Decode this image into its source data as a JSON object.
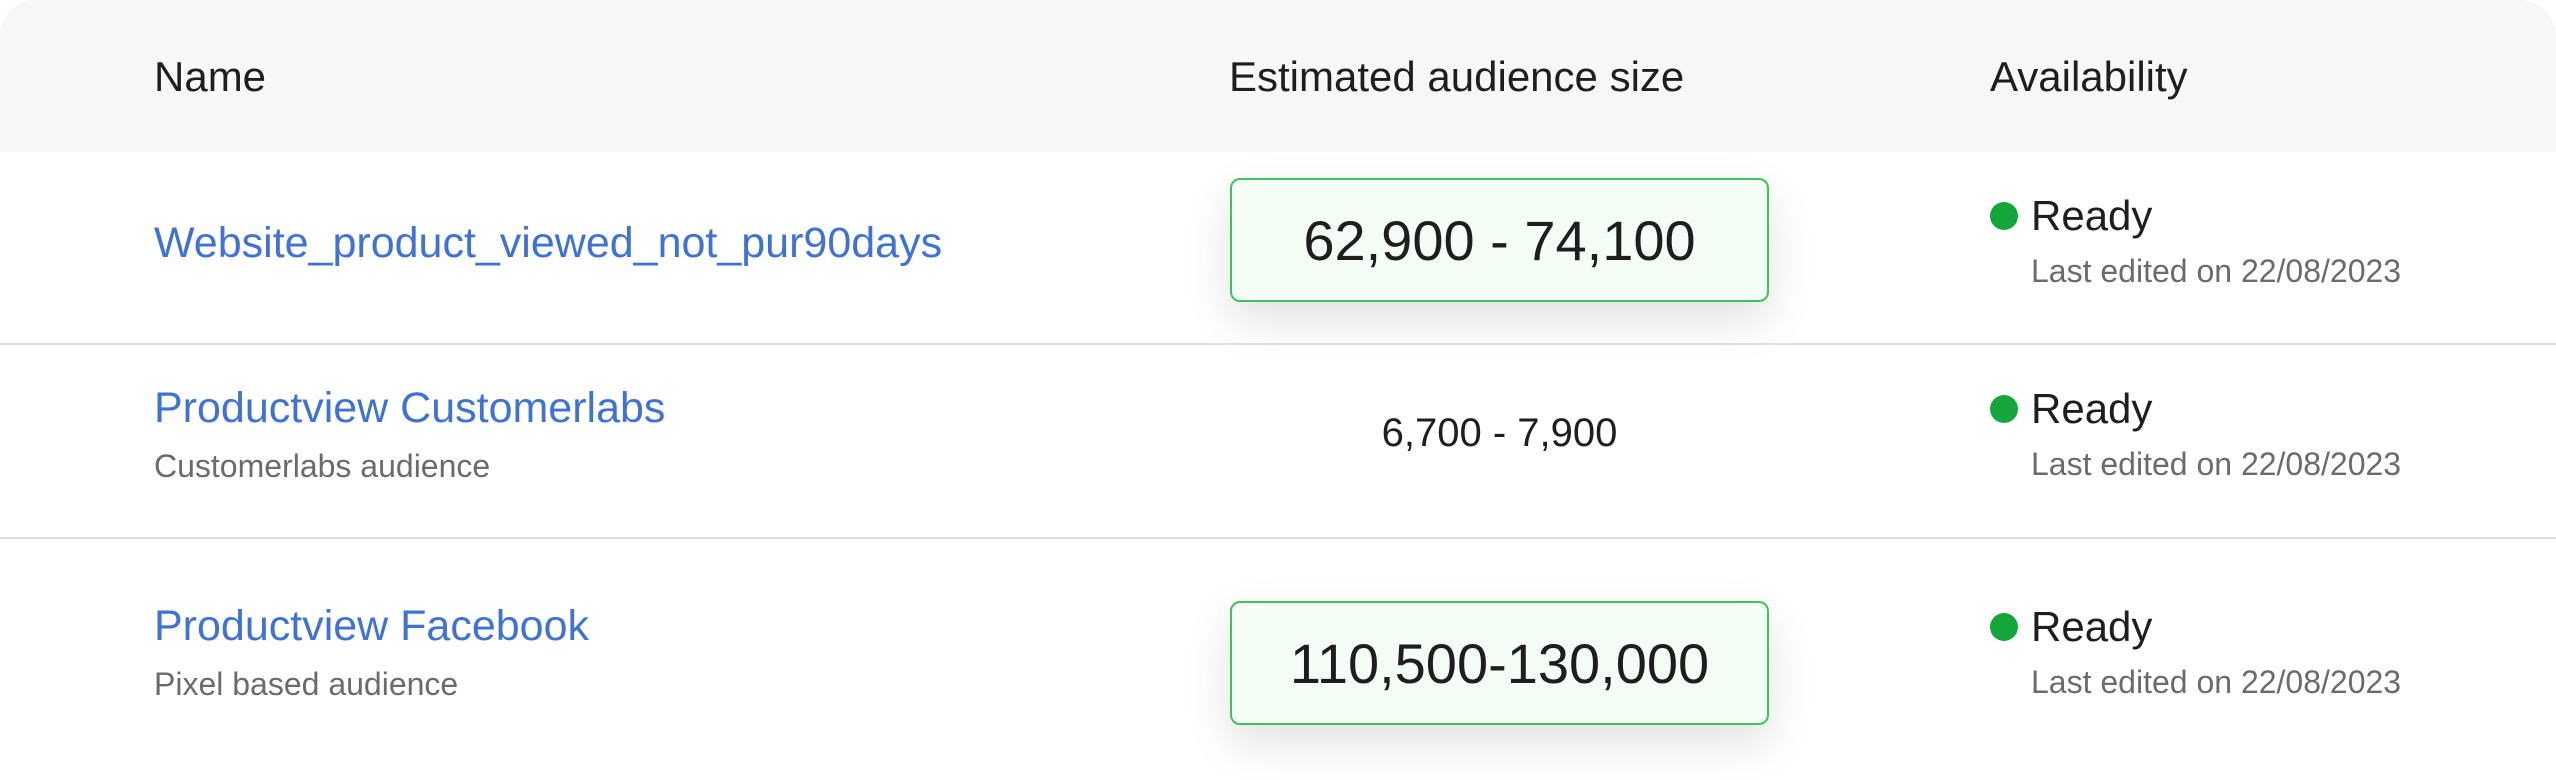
{
  "table": {
    "columns": {
      "name": "Name",
      "size": "Estimated audience size",
      "availability": "Availability"
    },
    "rows": [
      {
        "name": "Website_product_viewed_not_pur90days",
        "subtitle": "",
        "size": "62,900 - 74,100",
        "size_highlighted": true,
        "status": "Ready",
        "status_color": "#14a63a",
        "edited": "Last edited on 22/08/2023"
      },
      {
        "name": "Productview Customerlabs",
        "subtitle": "Customerlabs audience",
        "size": "6,700 - 7,900",
        "size_highlighted": false,
        "status": "Ready",
        "status_color": "#14a63a",
        "edited": "Last edited on 22/08/2023"
      },
      {
        "name": "Productview Facebook",
        "subtitle": "Pixel based audience",
        "size": "110,500-130,000",
        "size_highlighted": true,
        "status": "Ready",
        "status_color": "#14a63a",
        "edited": "Last edited on 22/08/2023"
      }
    ]
  },
  "colors": {
    "link": "#3f72d6",
    "ready": "#14a63a",
    "highlight_border": "#3dc35a",
    "header_bg": "#f7f7f7"
  },
  "icons": {
    "status": "status-dot-icon"
  }
}
